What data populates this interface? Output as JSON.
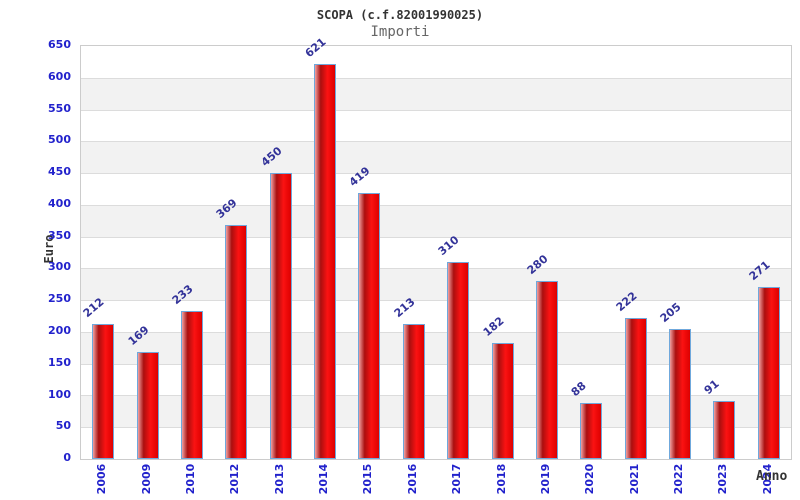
{
  "chart_data": {
    "type": "bar",
    "title": "SCOPA (c.f.82001990025)",
    "subtitle": "Importi",
    "xlabel": "Anno",
    "ylabel": "Euro",
    "categories": [
      "2006",
      "2009",
      "2010",
      "2012",
      "2013",
      "2014",
      "2015",
      "2016",
      "2017",
      "2018",
      "2019",
      "2020",
      "2021",
      "2022",
      "2023",
      "2024"
    ],
    "values": [
      212,
      169,
      233,
      369,
      450,
      621,
      419,
      213,
      310,
      182,
      280,
      88,
      222,
      205,
      91,
      271
    ],
    "ylim": [
      0,
      650
    ],
    "tick_step": 50,
    "y_ticks": [
      0,
      50,
      100,
      150,
      200,
      250,
      300,
      350,
      400,
      450,
      500,
      550,
      600,
      650
    ],
    "legend": "none",
    "grid": "horizontal alternating bands with gridlines every 50",
    "value_labels": "rotated above each bar",
    "colors": {
      "axis_label": "#2222cc",
      "value_label": "#333399",
      "bar_border": "#6fa8dc",
      "bar_gradient_stops": [
        "#f0a0a0",
        "#aa0f0f",
        "#fb1212",
        "#dd0000"
      ],
      "band_gray": "#f2f2f2",
      "grid_line": "#dcdcdc",
      "plot_border": "#cccccc",
      "title_color": "#333333",
      "subtitle_color": "#666666",
      "axis_title_color": "#333333"
    }
  }
}
